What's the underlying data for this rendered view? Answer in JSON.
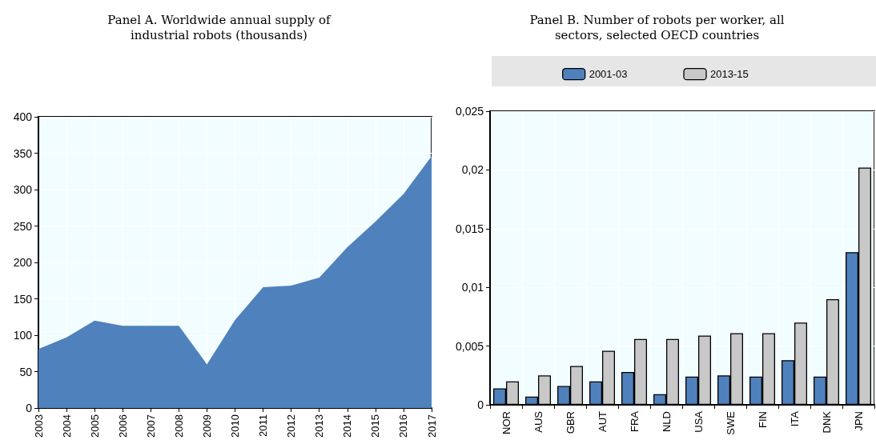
{
  "chart_data": [
    {
      "type": "area",
      "title": "Panel A. Worldwide annual supply of\nindustrial robots (thousands)",
      "categories": [
        "2003",
        "2004",
        "2005",
        "2006",
        "2007",
        "2008",
        "2009",
        "2010",
        "2011",
        "2012",
        "2013",
        "2014",
        "2015",
        "2016",
        "2017"
      ],
      "series": [
        {
          "color": "#4f81bd",
          "values": [
            81,
            97,
            120,
            113,
            113,
            113,
            60,
            121,
            166,
            168,
            179,
            221,
            256,
            294,
            346
          ]
        }
      ],
      "ylim": [
        0,
        400
      ],
      "yticks": [
        0,
        50,
        100,
        150,
        200,
        250,
        300,
        350,
        400
      ],
      "grid": true,
      "legend": false
    },
    {
      "type": "bar",
      "title": "Panel B. Number of robots per worker, all\nsectors, selected OECD countries",
      "categories": [
        "NOR",
        "AUS",
        "GBR",
        "AUT",
        "FRA",
        "NLD",
        "USA",
        "SWE",
        "FIN",
        "ITA",
        "DNK",
        "JPN"
      ],
      "series": [
        {
          "name": "2001-03",
          "color": "#4f81bd",
          "values": [
            0.0014,
            0.0007,
            0.0016,
            0.002,
            0.0028,
            0.0009,
            0.0024,
            0.0025,
            0.0024,
            0.0038,
            0.0024,
            0.013
          ]
        },
        {
          "name": "2013-15",
          "color": "#c8c8c8",
          "values": [
            0.002,
            0.0025,
            0.0033,
            0.0046,
            0.0056,
            0.0056,
            0.0059,
            0.0061,
            0.0061,
            0.007,
            0.009,
            0.0202
          ]
        }
      ],
      "ylim": [
        0,
        0.025
      ],
      "yticks": [
        0,
        {
          "value": 0.005,
          "label": "0,005"
        },
        {
          "value": 0.01,
          "label": "0,01"
        },
        {
          "value": 0.015,
          "label": "0,015"
        },
        {
          "value": 0.02,
          "label": "0,02"
        },
        {
          "value": 0.025,
          "label": "0,025"
        }
      ],
      "grid": true,
      "legend": "top"
    }
  ]
}
